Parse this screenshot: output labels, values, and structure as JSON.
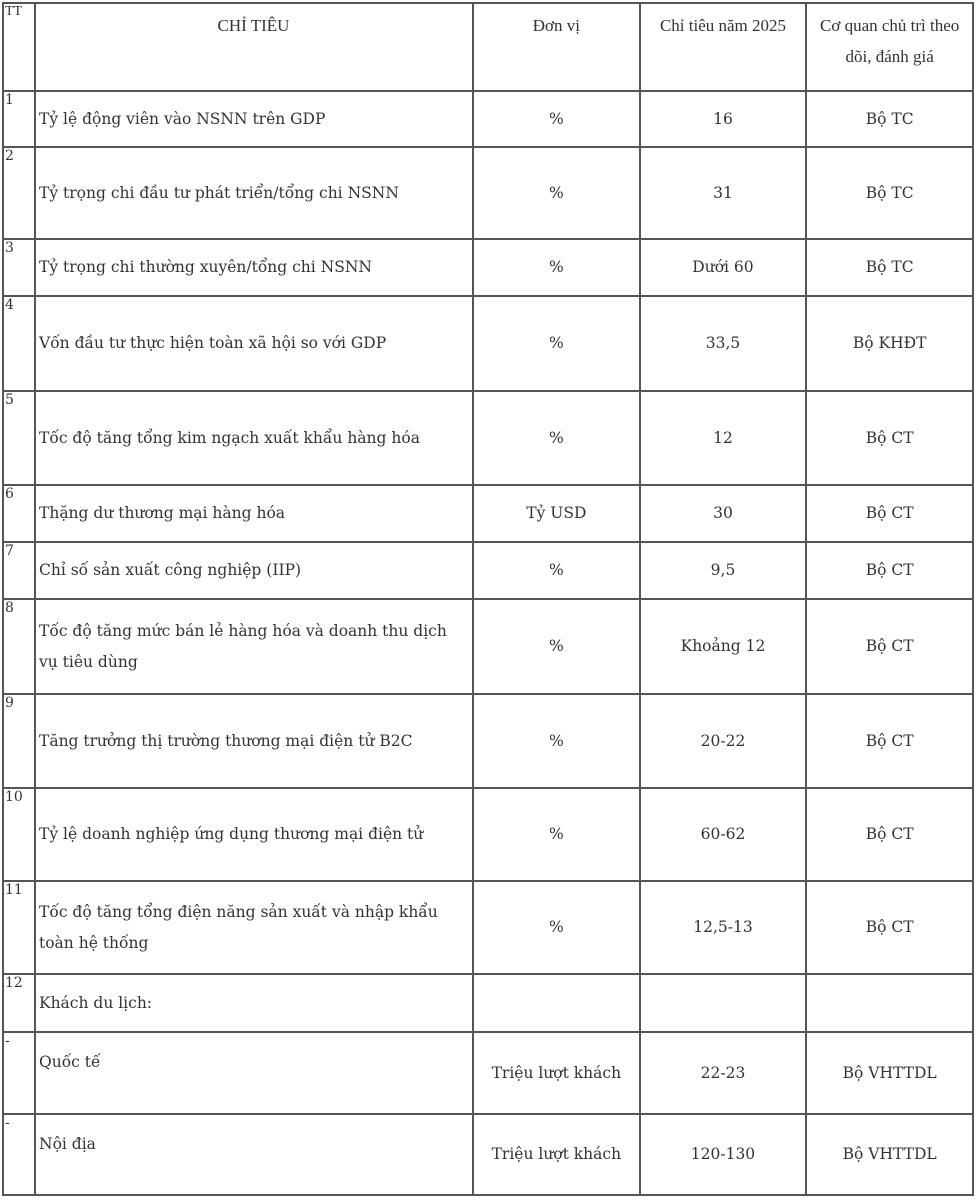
{
  "header": {
    "tt": "TT",
    "name": "CHỈ TIÊU",
    "unit": "Đơn vị",
    "target": "Chỉ tiêu năm 2025",
    "agency": "Cơ quan chủ trì theo dõi, đánh giá"
  },
  "rows": [
    {
      "tt": "1",
      "name": "Tỷ lệ động viên vào NSNN trên GDP",
      "unit": "%",
      "target": "16",
      "agency": "Bộ TC"
    },
    {
      "tt": "2",
      "name": "Tỷ trọng chi đầu tư phát triển/tổng chi NSNN",
      "unit": "%",
      "target": "31",
      "agency": "Bộ TC"
    },
    {
      "tt": "3",
      "name": "Tỷ trọng chi thường xuyên/tổng chi NSNN",
      "unit": "%",
      "target": "Dưới 60",
      "agency": "Bộ TC"
    },
    {
      "tt": "4",
      "name": "Vốn đầu tư thực hiện toàn xã hội so với GDP",
      "unit": "%",
      "target": "33,5",
      "agency": "Bộ KHĐT"
    },
    {
      "tt": "5",
      "name": "Tốc độ tăng tổng kim ngạch xuất khẩu hàng hóa",
      "unit": "%",
      "target": "12",
      "agency": "Bộ CT"
    },
    {
      "tt": "6",
      "name": "Thặng dư thương mại hàng hóa",
      "unit": "Tỷ USD",
      "target": "30",
      "agency": "Bộ CT"
    },
    {
      "tt": "7",
      "name": "Chỉ số sản xuất công nghiệp (IIP)",
      "unit": "%",
      "target": "9,5",
      "agency": "Bộ CT"
    },
    {
      "tt": "8",
      "name": "Tốc độ tăng mức bán lẻ hàng hóa và doanh thu dịch vụ tiêu dùng",
      "unit": "%",
      "target": "Khoảng 12",
      "agency": "Bộ CT"
    },
    {
      "tt": "9",
      "name": "Tăng trưởng thị trường thương mại điện tử B2C",
      "unit": "%",
      "target": "20-22",
      "agency": "Bộ CT"
    },
    {
      "tt": "10",
      "name": "Tỷ lệ doanh nghiệp ứng dụng thương mại điện tử",
      "unit": "%",
      "target": "60-62",
      "agency": "Bộ CT"
    },
    {
      "tt": "11",
      "name": "Tốc độ tăng tổng điện năng sản xuất và nhập khẩu toàn hệ thống",
      "unit": "%",
      "target": "12,5-13",
      "agency": "Bộ CT"
    },
    {
      "tt": "12",
      "name": "Khách du lịch:",
      "unit": "",
      "target": "",
      "agency": ""
    },
    {
      "tt": "-",
      "name": "Quốc tế",
      "unit": "Triệu lượt khách",
      "target": "22-23",
      "agency": "Bộ VHTTDL",
      "sub": true
    },
    {
      "tt": "-",
      "name": "Nội địa",
      "unit": "Triệu lượt khách",
      "target": "120-130",
      "agency": "Bộ VHTTDL",
      "sub": true
    }
  ]
}
